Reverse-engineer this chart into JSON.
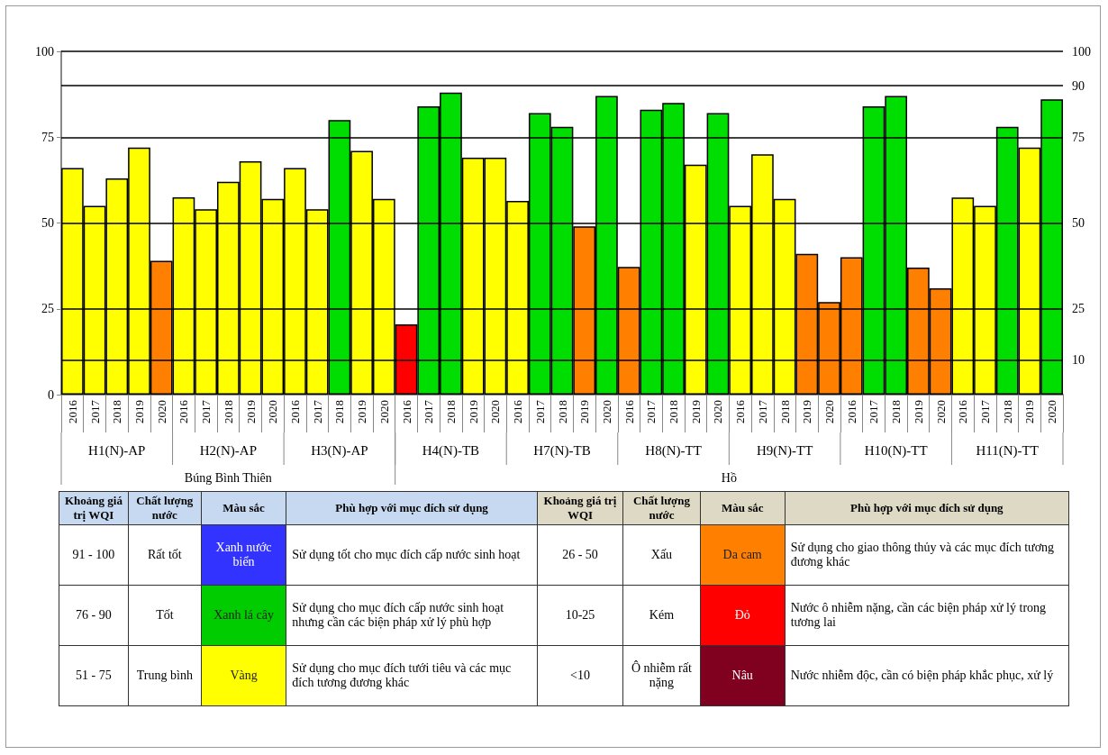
{
  "chart_data": [
    {
      "type": "bar",
      "categories": [
        "2016",
        "2017",
        "2018",
        "2019",
        "2020",
        "2016",
        "2017",
        "2018",
        "2019",
        "2020",
        "2016",
        "2017",
        "2018",
        "2019",
        "2020",
        "2016",
        "2017",
        "2018",
        "2019",
        "2020",
        "2016",
        "2017",
        "2018",
        "2019",
        "2020",
        "2016",
        "2017",
        "2018",
        "2019",
        "2020",
        "2016",
        "2017",
        "2018",
        "2019",
        "2020",
        "2016",
        "2017",
        "2018",
        "2019",
        "2020",
        "2016",
        "2017",
        "2018",
        "2019",
        "2020"
      ],
      "values": [
        66,
        55,
        63,
        72,
        39,
        57.5,
        54,
        62,
        68,
        57,
        66,
        54,
        80,
        71,
        57,
        20.5,
        84,
        88,
        69,
        69,
        56.4,
        82,
        78,
        49,
        87,
        37.2,
        83,
        85,
        67,
        82,
        55,
        70,
        57,
        41,
        27,
        40,
        84,
        87,
        37,
        31,
        57.4,
        55,
        78,
        72,
        86
      ],
      "colors": [
        "#ffff00",
        "#ffff00",
        "#ffff00",
        "#ffff00",
        "#ff8000",
        "#ffff00",
        "#ffff00",
        "#ffff00",
        "#ffff00",
        "#ffff00",
        "#ffff00",
        "#ffff00",
        "#00dd00",
        "#ffff00",
        "#ffff00",
        "#ff0000",
        "#00dd00",
        "#00dd00",
        "#ffff00",
        "#ffff00",
        "#ffff00",
        "#00dd00",
        "#00dd00",
        "#ff8000",
        "#00dd00",
        "#ff8000",
        "#00dd00",
        "#00dd00",
        "#ffff00",
        "#00dd00",
        "#ffff00",
        "#ffff00",
        "#ffff00",
        "#ff8000",
        "#ff8000",
        "#ff8000",
        "#00dd00",
        "#00dd00",
        "#ff8000",
        "#ff8000",
        "#ffff00",
        "#ffff00",
        "#00dd00",
        "#ffff00",
        "#00dd00"
      ],
      "ylim": [
        0,
        100
      ],
      "yticks": [
        0,
        25,
        50,
        75,
        100
      ],
      "y2lim": [
        0,
        100
      ],
      "y2ticks": [
        10,
        25,
        50,
        75,
        90,
        100
      ],
      "grid": "y",
      "annotations": [
        "H1(N)-AP",
        "H2(N)-AP",
        "H3(N)-AP",
        "H4(N)-TB",
        "H7(N)-TB",
        "H8(N)-TT",
        "H9(N)-TT",
        "H10(N)-TT",
        "H11(N)-TT",
        "Búng Bình Thiên",
        "Hồ"
      ]
    },
    {
      "type": "other",
      "annotations": [
        "Khoảng giá trị WQI",
        "Chất lượng nước",
        "Màu sắc",
        "Phù hợp với mục đích sử dụng",
        "Khoảng giá trị WQI",
        "Chất lượng nước",
        "Màu sắc",
        "Phù hợp với mục đích sử dụng",
        "91 - 100",
        "Rất tốt",
        "Xanh nước biển",
        "Sử dụng tốt cho mục đích cấp nước sinh hoạt",
        "26 - 50",
        "Xấu",
        "Da cam",
        "Sử dụng cho giao thông thủy và các mục đích tương đương khác",
        "76 - 90",
        "Tốt",
        "Xanh lá cây",
        "Sử dụng cho mục đích cấp nước sinh hoạt nhưng cần các biện pháp xử lý phù hợp",
        "10-25",
        "Kém",
        "Đỏ",
        "Nước ô nhiễm nặng, cần các biện pháp xử lý trong tương lai",
        "51 - 75",
        "Trung bình",
        "Vàng",
        "Sử dụng cho mục đích tưới tiêu và các mục đích tương đương khác",
        "<10",
        "Ô nhiễm rất nặng",
        "Nâu",
        "Nước nhiễm độc, cần có biện pháp khắc phục, xử lý"
      ],
      "colors": [
        "#3333ff",
        "#ff8000",
        "#00cc00",
        "#ff0000",
        "#ffff00",
        "#800020"
      ]
    }
  ]
}
